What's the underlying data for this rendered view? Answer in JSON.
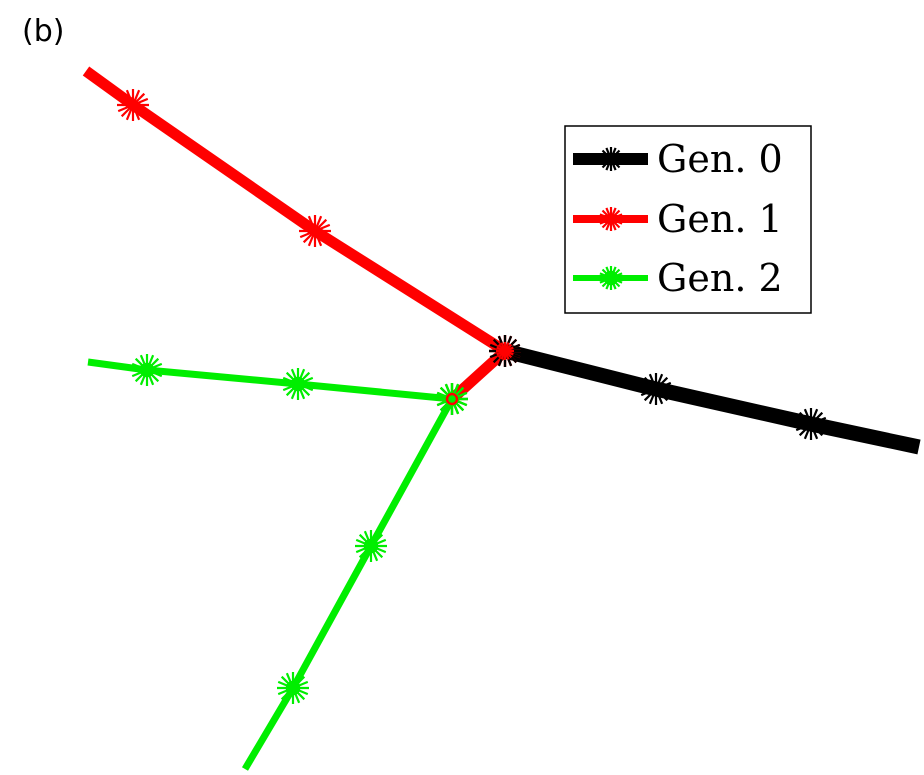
{
  "panel_label": "(b)",
  "legend": {
    "entries": [
      {
        "label": "Gen. 0",
        "color": "#000000",
        "marker": "asterisk"
      },
      {
        "label": "Gen. 1",
        "color": "#ff0000",
        "marker": "asterisk"
      },
      {
        "label": "Gen. 2",
        "color": "#00ee00",
        "marker": "circle"
      }
    ]
  },
  "branches": [
    {
      "generation": 0,
      "color": "#000000",
      "nodes": 4
    },
    {
      "generation": 1,
      "color": "#ff0000",
      "nodes": 4
    },
    {
      "generation": 1,
      "color": "#ff0000",
      "nodes": 2
    },
    {
      "generation": 2,
      "color": "#00ee00",
      "nodes": 4
    },
    {
      "generation": 2,
      "color": "#00ee00",
      "nodes": 4
    }
  ]
}
